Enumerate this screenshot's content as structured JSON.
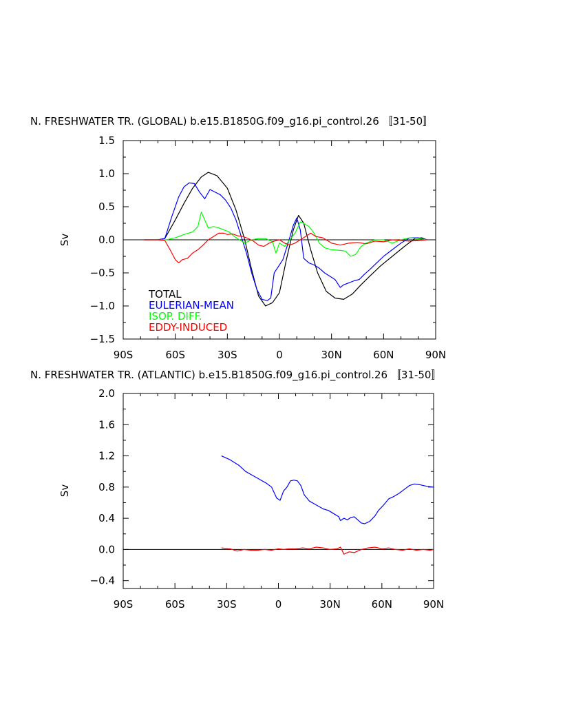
{
  "chart_data": [
    {
      "type": "line",
      "title": "N. FRESHWATER TR. (GLOBAL) b.e15.B1850G.f09_g16.pi_control.26 〚31-50〛",
      "xlabel": "",
      "ylabel": "Sv",
      "xlim": [
        -90,
        90
      ],
      "ylim": [
        -1.5,
        1.5
      ],
      "x_ticks": [
        -90,
        -60,
        -30,
        0,
        30,
        60,
        90
      ],
      "x_tick_labels": [
        "90S",
        "60S",
        "30S",
        "0",
        "30N",
        "60N",
        "90N"
      ],
      "y_ticks": [
        -1.5,
        -1.0,
        -0.5,
        0.0,
        0.5,
        1.0,
        1.5
      ],
      "y_tick_labels": [
        "−1.5",
        "−1.0",
        "−0.5",
        "0.0",
        "0.5",
        "1.0",
        "1.5"
      ],
      "zero_line": true,
      "grid": false,
      "legend_position": "bottom-left",
      "series": [
        {
          "name": "TOTAL",
          "color": "#000000",
          "x": [
            -78,
            -70,
            -66,
            -60,
            -55,
            -50,
            -45,
            -41,
            -36,
            -30,
            -25,
            -20,
            -16,
            -12,
            -8,
            -4,
            0,
            4,
            8,
            11,
            14,
            18,
            22,
            27,
            32,
            37,
            42,
            47,
            52,
            58,
            65,
            72,
            78,
            82,
            85
          ],
          "y": [
            0.0,
            0.0,
            0.02,
            0.3,
            0.55,
            0.78,
            0.95,
            1.02,
            0.97,
            0.78,
            0.45,
            0.0,
            -0.45,
            -0.85,
            -1.0,
            -0.95,
            -0.8,
            -0.3,
            0.15,
            0.37,
            0.25,
            -0.15,
            -0.5,
            -0.78,
            -0.88,
            -0.9,
            -0.82,
            -0.68,
            -0.55,
            -0.4,
            -0.25,
            -0.1,
            0.02,
            0.03,
            0.0
          ]
        },
        {
          "name": "EULERIAN-MEAN",
          "color": "#0000ff",
          "x": [
            -78,
            -70,
            -66,
            -62,
            -58,
            -55,
            -52,
            -49,
            -46,
            -43,
            -40,
            -37,
            -34,
            -31,
            -28,
            -25,
            -22,
            -19,
            -16,
            -13,
            -10,
            -7,
            -5,
            -3,
            -1,
            2,
            5,
            8,
            10,
            12,
            14,
            17,
            20,
            23,
            26,
            29,
            32,
            35,
            37,
            40,
            43,
            46,
            49,
            52,
            56,
            60,
            65,
            70,
            75,
            80,
            85
          ],
          "y": [
            0.0,
            0.0,
            0.02,
            0.35,
            0.65,
            0.8,
            0.86,
            0.85,
            0.72,
            0.62,
            0.76,
            0.72,
            0.68,
            0.6,
            0.48,
            0.3,
            0.05,
            -0.2,
            -0.5,
            -0.75,
            -0.9,
            -0.92,
            -0.88,
            -0.5,
            -0.42,
            -0.3,
            -0.05,
            0.22,
            0.33,
            0.15,
            -0.28,
            -0.35,
            -0.38,
            -0.43,
            -0.5,
            -0.55,
            -0.6,
            -0.72,
            -0.68,
            -0.65,
            -0.62,
            -0.6,
            -0.52,
            -0.45,
            -0.35,
            -0.25,
            -0.15,
            -0.05,
            0.03,
            0.03,
            0.0
          ]
        },
        {
          "name": "ISOP. DIFF.",
          "color": "#00ff00",
          "x": [
            -78,
            -70,
            -65,
            -60,
            -55,
            -50,
            -47,
            -45,
            -43,
            -41,
            -38,
            -35,
            -32,
            -29,
            -26,
            -23,
            -20,
            -16,
            -12,
            -8,
            -4,
            -2,
            0,
            3,
            6,
            9,
            12,
            14,
            17,
            20,
            23,
            26,
            30,
            35,
            38,
            41,
            44,
            47,
            50,
            55,
            60,
            65,
            70,
            75,
            80,
            85
          ],
          "y": [
            0.0,
            0.0,
            0.0,
            0.03,
            0.08,
            0.12,
            0.2,
            0.42,
            0.3,
            0.18,
            0.2,
            0.18,
            0.15,
            0.12,
            0.05,
            0.0,
            -0.05,
            0.0,
            0.02,
            0.02,
            -0.03,
            -0.2,
            -0.05,
            -0.1,
            0.0,
            0.1,
            0.27,
            0.25,
            0.2,
            0.1,
            -0.05,
            -0.12,
            -0.15,
            -0.16,
            -0.17,
            -0.25,
            -0.22,
            -0.1,
            -0.05,
            0.0,
            0.0,
            -0.05,
            0.0,
            0.03,
            0.02,
            0.0
          ]
        },
        {
          "name": "EDDY-INDUCED",
          "color": "#ff0000",
          "x": [
            -78,
            -70,
            -66,
            -63,
            -60,
            -58,
            -56,
            -53,
            -50,
            -47,
            -44,
            -41,
            -38,
            -35,
            -32,
            -30,
            -27,
            -24,
            -21,
            -18,
            -15,
            -12,
            -9,
            -6,
            -3,
            0,
            3,
            6,
            9,
            12,
            15,
            18,
            21,
            25,
            30,
            35,
            40,
            45,
            50,
            55,
            60,
            65,
            70,
            75,
            80,
            85
          ],
          "y": [
            0.0,
            0.0,
            -0.01,
            -0.15,
            -0.3,
            -0.35,
            -0.3,
            -0.28,
            -0.2,
            -0.15,
            -0.08,
            0.0,
            0.05,
            0.1,
            0.1,
            0.08,
            0.09,
            0.06,
            0.05,
            0.02,
            -0.02,
            -0.08,
            -0.1,
            -0.05,
            -0.02,
            0.0,
            -0.05,
            -0.08,
            -0.05,
            0.0,
            0.05,
            0.1,
            0.05,
            0.03,
            -0.05,
            -0.08,
            -0.05,
            -0.04,
            -0.06,
            -0.02,
            -0.03,
            0.0,
            -0.01,
            -0.02,
            -0.01,
            0.0
          ]
        }
      ],
      "legend": [
        "TOTAL",
        "EULERIAN-MEAN",
        "ISOP. DIFF.",
        "EDDY-INDUCED"
      ]
    },
    {
      "type": "line",
      "title": "N. FRESHWATER TR. (ATLANTIC) b.e15.B1850G.f09_g16.pi_control.26 〚31-50〛",
      "xlabel": "",
      "ylabel": "Sv",
      "xlim": [
        -90,
        90
      ],
      "ylim": [
        -0.5,
        2.0
      ],
      "x_ticks": [
        -90,
        -60,
        -30,
        0,
        30,
        60,
        90
      ],
      "x_tick_labels": [
        "90S",
        "60S",
        "30S",
        "0",
        "30N",
        "60N",
        "90N"
      ],
      "y_ticks": [
        -0.4,
        0.0,
        0.4,
        0.8,
        1.2,
        1.6,
        2.0
      ],
      "y_tick_labels": [
        "−0.4",
        "0.0",
        "0.4",
        "0.8",
        "1.2",
        "1.6",
        "2.0"
      ],
      "zero_line": true,
      "grid": false,
      "series": [
        {
          "name": "",
          "color": "#0000ff",
          "x": [
            -33,
            -28,
            -23,
            -19,
            -15,
            -11,
            -7,
            -4,
            -1,
            1,
            3,
            5,
            7,
            9,
            11,
            13,
            15,
            18,
            22,
            26,
            29,
            32,
            35,
            36,
            38,
            40,
            42,
            44,
            46,
            48,
            50,
            53,
            56,
            58,
            61,
            64,
            67,
            70,
            73,
            76,
            79,
            82,
            86,
            90
          ],
          "y": [
            1.2,
            1.15,
            1.08,
            1.0,
            0.95,
            0.9,
            0.85,
            0.8,
            0.66,
            0.63,
            0.75,
            0.8,
            0.88,
            0.89,
            0.88,
            0.82,
            0.7,
            0.62,
            0.57,
            0.52,
            0.5,
            0.46,
            0.42,
            0.37,
            0.4,
            0.38,
            0.41,
            0.42,
            0.38,
            0.34,
            0.33,
            0.36,
            0.43,
            0.5,
            0.57,
            0.65,
            0.68,
            0.72,
            0.77,
            0.82,
            0.84,
            0.83,
            0.81,
            0.8
          ]
        },
        {
          "name": "",
          "color": "#ff0000",
          "x": [
            -33,
            -28,
            -24,
            -20,
            -16,
            -12,
            -8,
            -4,
            0,
            3,
            6,
            10,
            14,
            18,
            22,
            26,
            30,
            34,
            36,
            38,
            41,
            44,
            48,
            52,
            56,
            60,
            64,
            68,
            72,
            76,
            80,
            84,
            88,
            90
          ],
          "y": [
            0.02,
            0.01,
            -0.02,
            0.0,
            -0.01,
            -0.01,
            0.0,
            -0.01,
            0.01,
            0.0,
            0.01,
            0.01,
            0.02,
            0.01,
            0.03,
            0.02,
            0.0,
            0.01,
            0.03,
            -0.06,
            -0.03,
            -0.04,
            0.0,
            0.02,
            0.03,
            0.01,
            0.02,
            0.0,
            -0.01,
            0.01,
            -0.01,
            0.0,
            -0.01,
            0.0
          ]
        }
      ]
    }
  ]
}
